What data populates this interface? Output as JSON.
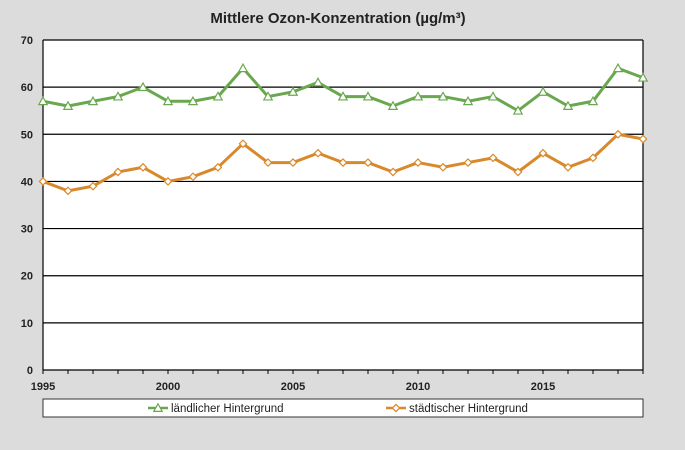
{
  "chart_data": {
    "type": "line",
    "title": "Mittlere Ozon-Konzentration (µg/m³)",
    "xlabel": "",
    "ylabel": "",
    "x": [
      1995,
      1996,
      1997,
      1998,
      1999,
      2000,
      2001,
      2002,
      2003,
      2004,
      2005,
      2006,
      2007,
      2008,
      2009,
      2010,
      2011,
      2012,
      2013,
      2014,
      2015,
      2016,
      2017,
      2018,
      2019
    ],
    "xlim": [
      1995,
      2019
    ],
    "ylim": [
      0,
      70
    ],
    "x_ticks": [
      1995,
      2000,
      2005,
      2010,
      2015
    ],
    "y_ticks": [
      0,
      10,
      20,
      30,
      40,
      50,
      60,
      70
    ],
    "grid": "horizontal",
    "legend_position": "bottom",
    "series": [
      {
        "name": "ländlicher Hintergrund",
        "color": "#6aa84f",
        "marker": "triangle",
        "values": [
          57,
          56,
          57,
          58,
          60,
          57,
          57,
          58,
          64,
          58,
          59,
          61,
          58,
          58,
          56,
          58,
          58,
          57,
          58,
          55,
          59,
          56,
          57,
          64,
          62
        ]
      },
      {
        "name": "städtischer Hintergrund",
        "color": "#d9892b",
        "marker": "diamond",
        "values": [
          40,
          38,
          39,
          42,
          43,
          40,
          41,
          43,
          48,
          44,
          44,
          46,
          44,
          44,
          42,
          44,
          43,
          44,
          45,
          42,
          46,
          43,
          45,
          50,
          49
        ]
      }
    ]
  }
}
